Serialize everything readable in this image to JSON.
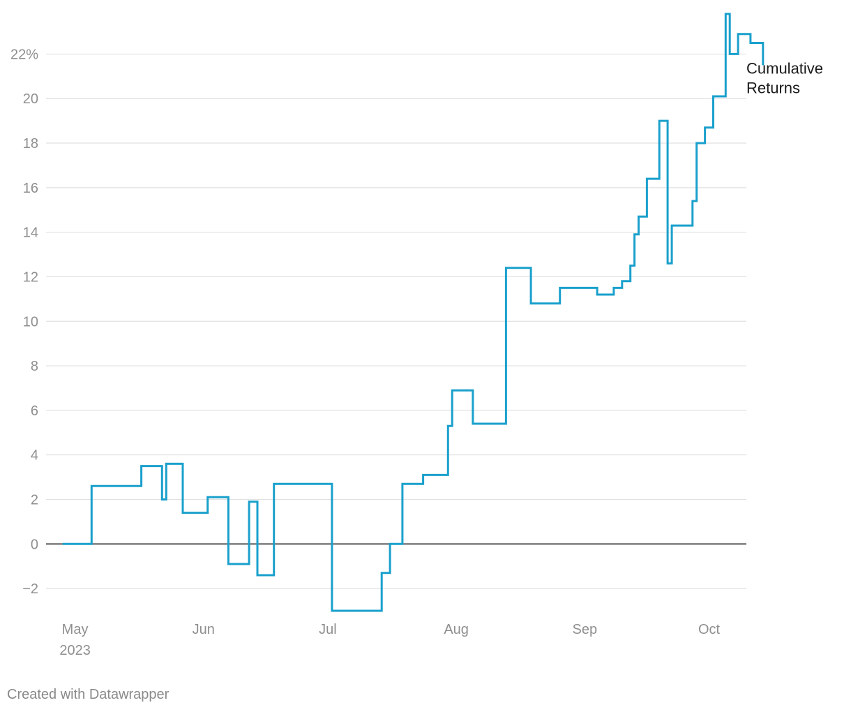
{
  "chart_data": {
    "type": "line",
    "interpolation": "step-after",
    "title": "",
    "xlabel": "",
    "ylabel": "",
    "y_unit_suffix": "%",
    "ylim": [
      -3.0,
      23.8
    ],
    "y_ticks": [
      -2,
      0,
      2,
      4,
      6,
      8,
      10,
      12,
      14,
      16,
      18,
      20,
      22
    ],
    "y_tick_labels": [
      "−2",
      "0",
      "2",
      "4",
      "6",
      "8",
      "10",
      "12",
      "14",
      "16",
      "18",
      "20",
      "22%"
    ],
    "grid": "horizontal",
    "xlim": [
      "2023-04-24",
      "2023-10-10"
    ],
    "x_ticks": [
      {
        "date": "2023-05-01",
        "label": "May",
        "sublabel": "2023"
      },
      {
        "date": "2023-06-01",
        "label": "Jun",
        "sublabel": ""
      },
      {
        "date": "2023-07-01",
        "label": "Jul",
        "sublabel": ""
      },
      {
        "date": "2023-08-01",
        "label": "Aug",
        "sublabel": ""
      },
      {
        "date": "2023-09-01",
        "label": "Sep",
        "sublabel": ""
      },
      {
        "date": "2023-10-01",
        "label": "Oct",
        "sublabel": ""
      }
    ],
    "legend": "end-of-line label",
    "series": [
      {
        "name": "Cumulative Returns",
        "label_lines": [
          "Cumulative",
          "Returns"
        ],
        "color": "#1aa0cc",
        "points": [
          {
            "x": "2023-04-28",
            "y": 0.0
          },
          {
            "x": "2023-05-05",
            "y": 2.6
          },
          {
            "x": "2023-05-17",
            "y": 3.5
          },
          {
            "x": "2023-05-22",
            "y": 2.0
          },
          {
            "x": "2023-05-23",
            "y": 3.6
          },
          {
            "x": "2023-05-27",
            "y": 1.4
          },
          {
            "x": "2023-06-02",
            "y": 2.1
          },
          {
            "x": "2023-06-07",
            "y": -0.9
          },
          {
            "x": "2023-06-12",
            "y": 1.9
          },
          {
            "x": "2023-06-14",
            "y": -1.4
          },
          {
            "x": "2023-06-18",
            "y": 2.7
          },
          {
            "x": "2023-06-26",
            "y": 2.7
          },
          {
            "x": "2023-07-02",
            "y": -3.0
          },
          {
            "x": "2023-07-08",
            "y": -3.0
          },
          {
            "x": "2023-07-14",
            "y": -1.3
          },
          {
            "x": "2023-07-16",
            "y": 0.0
          },
          {
            "x": "2023-07-19",
            "y": 2.7
          },
          {
            "x": "2023-07-24",
            "y": 3.1
          },
          {
            "x": "2023-07-30",
            "y": 5.3
          },
          {
            "x": "2023-07-31",
            "y": 6.9
          },
          {
            "x": "2023-08-05",
            "y": 5.4
          },
          {
            "x": "2023-08-13",
            "y": 12.4
          },
          {
            "x": "2023-08-19",
            "y": 10.8
          },
          {
            "x": "2023-08-26",
            "y": 11.5
          },
          {
            "x": "2023-09-04",
            "y": 11.2
          },
          {
            "x": "2023-09-08",
            "y": 11.5
          },
          {
            "x": "2023-09-10",
            "y": 11.8
          },
          {
            "x": "2023-09-12",
            "y": 12.5
          },
          {
            "x": "2023-09-13",
            "y": 13.9
          },
          {
            "x": "2023-09-14",
            "y": 14.7
          },
          {
            "x": "2023-09-16",
            "y": 16.4
          },
          {
            "x": "2023-09-19",
            "y": 19.0
          },
          {
            "x": "2023-09-21",
            "y": 12.6
          },
          {
            "x": "2023-09-22",
            "y": 14.3
          },
          {
            "x": "2023-09-27",
            "y": 15.4
          },
          {
            "x": "2023-09-28",
            "y": 18.0
          },
          {
            "x": "2023-09-30",
            "y": 18.7
          },
          {
            "x": "2023-10-02",
            "y": 20.1
          },
          {
            "x": "2023-10-05",
            "y": 23.8
          },
          {
            "x": "2023-10-06",
            "y": 22.0
          },
          {
            "x": "2023-10-08",
            "y": 22.9
          },
          {
            "x": "2023-10-11",
            "y": 22.5
          },
          {
            "x": "2023-10-14",
            "y": 21.5
          }
        ]
      }
    ]
  },
  "footer": {
    "credit": "Created with Datawrapper"
  }
}
